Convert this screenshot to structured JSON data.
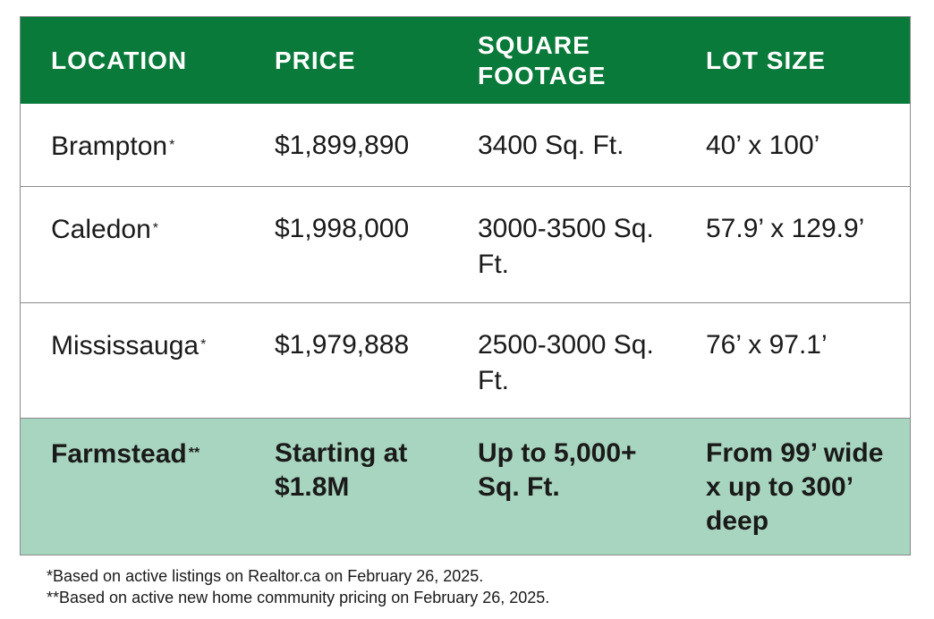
{
  "table": {
    "header": [
      "LOCATION",
      "PRICE",
      "SQUARE FOOTAGE",
      "LOT SIZE"
    ],
    "rows": [
      {
        "location": "Brampton",
        "mark": "*",
        "price": "$1,899,890",
        "footage": "3400 Sq. Ft.",
        "lot": "40’ x 100’"
      },
      {
        "location": "Caledon",
        "mark": "*",
        "price": "$1,998,000",
        "footage": "3000-3500 Sq. Ft.",
        "lot": "57.9’ x 129.9’"
      },
      {
        "location": "Mississauga",
        "mark": "*",
        "price": "$1,979,888",
        "footage": "2500-3000 Sq. Ft.",
        "lot": "76’ x 97.1’"
      },
      {
        "location": "Farmstead",
        "mark": "**",
        "price": "Starting at $1.8M",
        "footage": "Up to 5,000+ Sq. Ft.",
        "lot": "From 99’ wide x up to 300’ deep"
      }
    ]
  },
  "footnotes": [
    "*Based on active listings on Realtor.ca on February 26, 2025.",
    "**Based on active new home community pricing on February 26, 2025."
  ]
}
